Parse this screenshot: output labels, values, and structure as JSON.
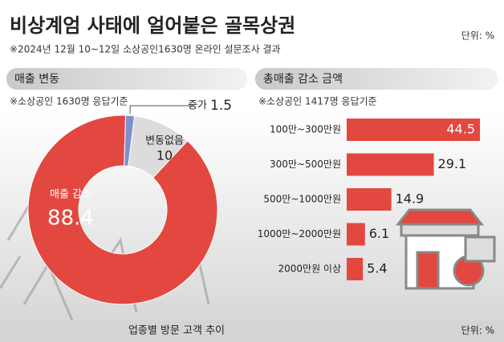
{
  "header": {
    "title": "비상계엄 사태에 얼어붙은 골목상권",
    "subtitle": "※2024년 12월 10~12일 소상공인1630명 온라인 설문조사 결과",
    "unit": "단위: %"
  },
  "chart_data": [
    {
      "type": "pie",
      "title": "매출 변동",
      "subtitle": "※소상공인 1630명 응답기준",
      "categories": [
        "증가",
        "변동없음",
        "매출 감소"
      ],
      "values": [
        1.5,
        10,
        88.4
      ],
      "colors": [
        "#7f8fce",
        "#dcdcdc",
        "#e2483f"
      ]
    },
    {
      "type": "bar",
      "title": "총매출 감소 금액",
      "subtitle": "※소상공인 1417명 응답기준",
      "categories": [
        "100만~300만원",
        "300만~500만원",
        "500만~1000만원",
        "1000만~2000만원",
        "2000만원 이상"
      ],
      "values": [
        44.5,
        29.1,
        14.9,
        6.1,
        5.4
      ],
      "color": "#e2483f"
    }
  ],
  "footer": {
    "title": "업종별 방문 고객 추이",
    "unit": "단위: %"
  }
}
